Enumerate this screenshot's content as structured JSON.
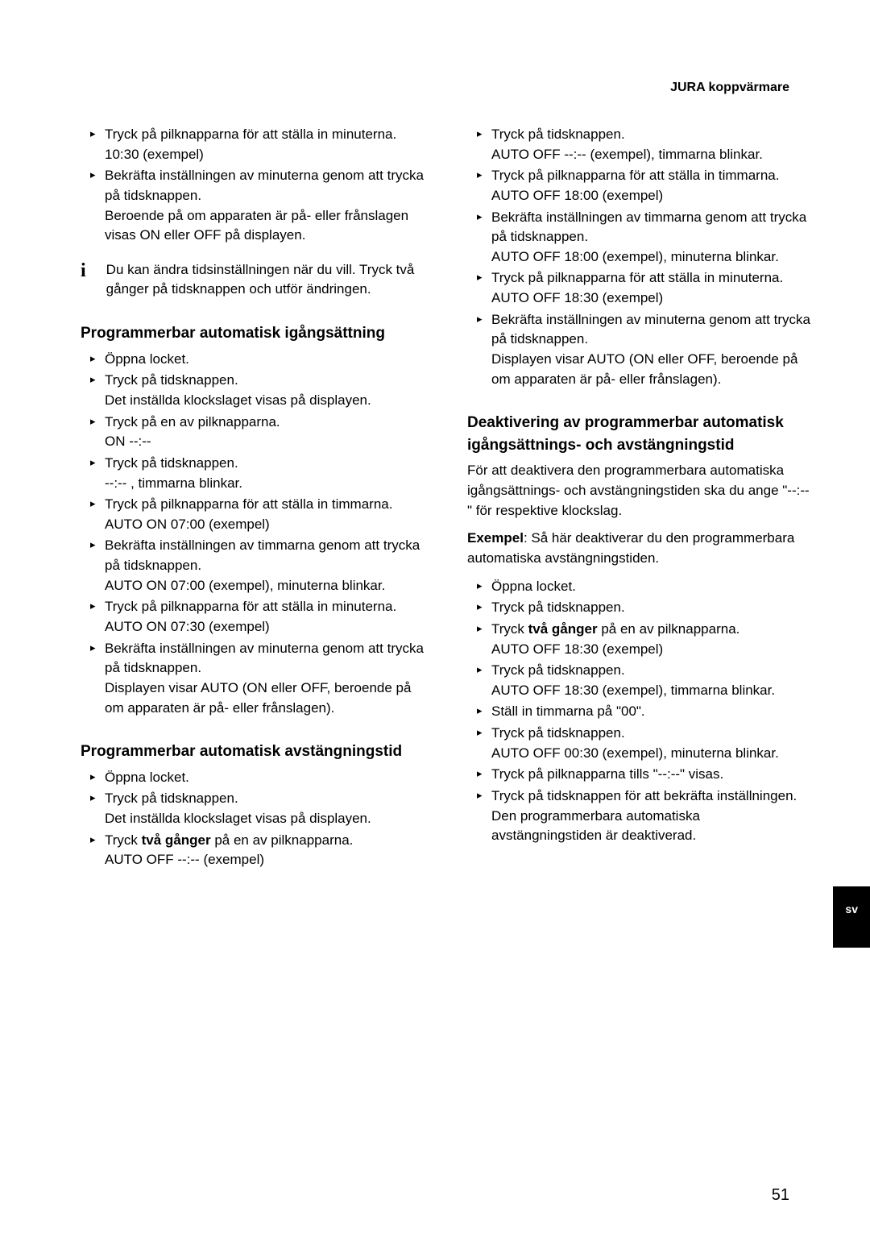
{
  "header": {
    "title": "JURA koppvärmare"
  },
  "tab": {
    "label": "sv"
  },
  "page_number": "51",
  "col1": {
    "top_bullets": [
      {
        "lines": [
          "Tryck på pilknapparna för att ställa in minuterna.",
          "10:30 (exempel)"
        ]
      },
      {
        "lines": [
          "Bekräfta inställningen av minuterna genom att trycka på tidsknappen.",
          "Beroende på om apparaten är på- eller frånslagen visas ON eller OFF på displayen."
        ]
      }
    ],
    "info_note": "Du kan ändra tidsinställningen när du vill. Tryck två gånger på tidsknappen och utför ändringen.",
    "section1": {
      "title": "Programmerbar automatisk igångsättning",
      "bullets": [
        {
          "lines": [
            "Öppna locket."
          ]
        },
        {
          "lines": [
            "Tryck på tidsknappen.",
            "Det inställda klockslaget visas på displayen."
          ]
        },
        {
          "lines": [
            "Tryck på en av pilknapparna.",
            "ON --:--"
          ]
        },
        {
          "lines": [
            "Tryck på tidsknappen.",
            "--:-- , timmarna blinkar."
          ]
        },
        {
          "lines": [
            "Tryck på pilknapparna för att ställa in timmarna.",
            "AUTO ON 07:00 (exempel)"
          ]
        },
        {
          "lines": [
            "Bekräfta inställningen av timmarna genom att trycka på tidsknappen.",
            "AUTO ON 07:00 (exempel), minuterna blinkar."
          ]
        },
        {
          "lines": [
            "Tryck på pilknapparna för att ställa in minuterna.",
            "AUTO ON 07:30 (exempel)"
          ]
        },
        {
          "lines": [
            "Bekräfta inställningen av minuterna genom att trycka på tidsknappen.",
            "Displayen visar AUTO (ON eller OFF, beroende på om apparaten är på- eller frånslagen)."
          ]
        }
      ]
    },
    "section2": {
      "title": "Programmerbar automatisk avstängningstid",
      "bullets": [
        {
          "lines": [
            "Öppna locket."
          ]
        },
        {
          "lines": [
            "Tryck på tidsknappen.",
            "Det inställda klockslaget visas på displayen."
          ]
        },
        {
          "html": "Tryck <b>två gånger</b> på en av pilknapparna.",
          "extra": [
            "AUTO OFF --:-- (exempel)"
          ]
        }
      ]
    }
  },
  "col2": {
    "top_bullets": [
      {
        "lines": [
          "Tryck på tidsknappen.",
          "AUTO OFF --:-- (exempel), timmarna blinkar."
        ]
      },
      {
        "lines": [
          "Tryck på pilknapparna för att ställa in timmarna.",
          "AUTO OFF 18:00 (exempel)"
        ]
      },
      {
        "lines": [
          "Bekräfta inställningen av timmarna genom att trycka på tidsknappen.",
          "AUTO OFF 18:00 (exempel), minuterna blinkar."
        ]
      },
      {
        "lines": [
          "Tryck på pilknapparna för att ställa in minuterna.",
          "AUTO OFF 18:30 (exempel)"
        ]
      },
      {
        "lines": [
          "Bekräfta inställningen av minuterna genom att trycka på tidsknappen.",
          "Displayen visar AUTO (ON eller OFF, beroende på om apparaten är på- eller frånslagen)."
        ]
      }
    ],
    "section3": {
      "title": "Deaktivering av programmerbar automatisk igångsättnings- och avstängningstid",
      "intro": "För att deaktivera den programmerbara automatiska igångsättnings- och avstängningstiden ska du ange \"--:--\" för respektive klockslag.",
      "example_label": "Exempel",
      "example_text": ": Så här deaktiverar du den programmerbara automatiska avstängningstiden.",
      "bullets": [
        {
          "lines": [
            "Öppna locket."
          ]
        },
        {
          "lines": [
            "Tryck på tidsknappen."
          ]
        },
        {
          "html": "Tryck <b>två gånger</b> på en av pilknapparna.",
          "extra": [
            "AUTO OFF 18:30 (exempel)"
          ]
        },
        {
          "lines": [
            "Tryck på tidsknappen.",
            "AUTO OFF 18:30 (exempel), timmarna blinkar."
          ]
        },
        {
          "lines": [
            "Ställ in timmarna på \"00\"."
          ]
        },
        {
          "lines": [
            "Tryck på tidsknappen.",
            "AUTO OFF 00:30 (exempel), minuterna blinkar."
          ]
        },
        {
          "lines": [
            "Tryck på pilknapparna tills \"--:--\" visas."
          ]
        },
        {
          "lines": [
            "Tryck på tidsknappen för att bekräfta inställningen.",
            "Den programmerbara automatiska avstängningstiden är deaktiverad."
          ]
        }
      ]
    }
  }
}
